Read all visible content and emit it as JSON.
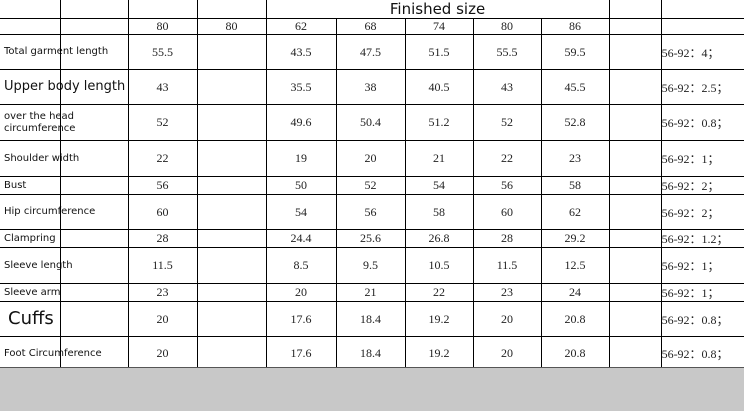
{
  "header": {
    "title": "Finished size",
    "sizes": [
      "80",
      "80",
      "62",
      "68",
      "74",
      "80",
      "86"
    ]
  },
  "rows": [
    {
      "label": "Total garment length",
      "values": [
        "55.5",
        "",
        "43.5",
        "47.5",
        "51.5",
        "55.5",
        "59.5"
      ],
      "note": "56-92：4；"
    },
    {
      "label": "Upper body length",
      "values": [
        "43",
        "",
        "35.5",
        "38",
        "40.5",
        "43",
        "45.5"
      ],
      "note": "56-92：2.5；"
    },
    {
      "label": "over the head circumference",
      "values": [
        "52",
        "",
        "49.6",
        "50.4",
        "51.2",
        "52",
        "52.8"
      ],
      "note": "56-92：0.8；"
    },
    {
      "label": "Shoulder width",
      "values": [
        "22",
        "",
        "19",
        "20",
        "21",
        "22",
        "23"
      ],
      "note": "56-92：1；"
    },
    {
      "label": "Bust",
      "values": [
        "56",
        "",
        "50",
        "52",
        "54",
        "56",
        "58"
      ],
      "note": "56-92：2；"
    },
    {
      "label": "Hip circumference",
      "values": [
        "60",
        "",
        "54",
        "56",
        "58",
        "60",
        "62"
      ],
      "note": "56-92：2；"
    },
    {
      "label": "Clampring",
      "values": [
        "28",
        "",
        "24.4",
        "25.6",
        "26.8",
        "28",
        "29.2"
      ],
      "note": "56-92：1.2；"
    },
    {
      "label": "Sleeve length",
      "values": [
        "11.5",
        "",
        "8.5",
        "9.5",
        "10.5",
        "11.5",
        "12.5"
      ],
      "note": "56-92：1；"
    },
    {
      "label": "Sleeve arm",
      "values": [
        "23",
        "",
        "20",
        "21",
        "22",
        "23",
        "24"
      ],
      "note": "56-92：1；"
    },
    {
      "label": "Cuffs",
      "values": [
        "20",
        "",
        "17.6",
        "18.4",
        "19.2",
        "20",
        "20.8"
      ],
      "note": "56-92：0.8；"
    },
    {
      "label": "Foot Circumference",
      "values": [
        "20",
        "",
        "17.6",
        "18.4",
        "19.2",
        "20",
        "20.8"
      ],
      "note": "56-92：0.8；"
    }
  ]
}
